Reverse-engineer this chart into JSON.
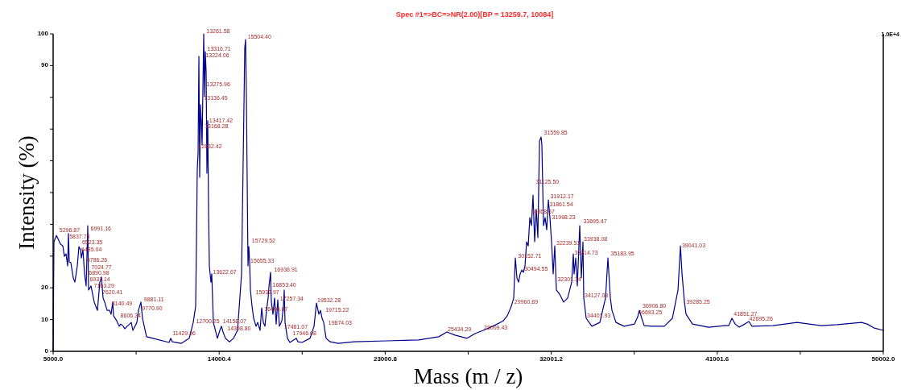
{
  "chart_data": {
    "type": "line",
    "title": "Spec #1=>BC=>NR(2.00)[BP = 13259.7, 10084]",
    "xlabel": "Mass (m / z)",
    "ylabel": "Intensity (%)",
    "xlim": [
      5000,
      50002
    ],
    "xticks": [
      {
        "value": 5000,
        "label": "5000.0"
      },
      {
        "value": 9500.2,
        "label": null
      },
      {
        "value": 14000.4,
        "label": "14000.4"
      },
      {
        "value": 18500.6,
        "label": null
      },
      {
        "value": 23000.8,
        "label": "23000.8"
      },
      {
        "value": 27501,
        "label": null
      },
      {
        "value": 32001.2,
        "label": "32001.2"
      },
      {
        "value": 36501.4,
        "label": null
      },
      {
        "value": 41001.6,
        "label": "41001.6"
      },
      {
        "value": 45501.8,
        "label": null
      },
      {
        "value": 50002,
        "label": "50002.0"
      }
    ],
    "ylim": [
      0,
      100
    ],
    "yticks": [
      0,
      10,
      20,
      {
        "value": 30,
        "label": null
      },
      {
        "value": 40,
        "label": null
      },
      {
        "value": 50,
        "label": null
      },
      {
        "value": 60,
        "label": null
      },
      {
        "value": 70,
        "label": null
      },
      {
        "value": 80,
        "label": null
      },
      90,
      100
    ],
    "grid": false,
    "marker": "none",
    "line_style": "solid",
    "series": [
      {
        "color": "#00008b",
        "x": [
          5000,
          5044,
          5175,
          5262,
          5393,
          5524,
          5611,
          5698,
          5786,
          5829,
          5873,
          5960,
          6091,
          6179,
          6310,
          6397,
          6484,
          6528,
          6615,
          6702,
          6790,
          6877,
          6921,
          7052,
          7226,
          7401,
          7532,
          7619,
          7706,
          7794,
          7925,
          8056,
          8143,
          8230,
          8274,
          8448,
          8579,
          8667,
          8798,
          8885,
          9016,
          9234,
          9321,
          9540,
          9627,
          9758,
          9845,
          10063,
          10413,
          11286,
          11373,
          11460,
          11940,
          12377,
          12595,
          12726,
          12770,
          12813,
          12857,
          12901,
          12944,
          12988,
          13032,
          13075,
          13119,
          13163,
          13206,
          13250,
          13294,
          13337,
          13381,
          13425,
          13468,
          13555,
          13599,
          13686,
          13905,
          14036,
          14123,
          14210,
          14341,
          14559,
          14778,
          14996,
          15214,
          15301,
          15389,
          15432,
          15476,
          15563,
          15607,
          15651,
          15694,
          15782,
          15869,
          16000,
          16087,
          16218,
          16305,
          16393,
          16480,
          16567,
          16654,
          16698,
          16786,
          16829,
          16916,
          17004,
          17091,
          17178,
          17266,
          17397,
          17484,
          17528,
          17571,
          17702,
          17833,
          18051,
          18182,
          18270,
          18488,
          18924,
          19143,
          19274,
          19405,
          19492,
          19579,
          19666,
          19797,
          20016,
          20452,
          21325,
          23071,
          24817,
          25908,
          26345,
          26781,
          27436,
          27873,
          28309,
          28833,
          29400,
          29619,
          29837,
          29968,
          30055,
          30142,
          30230,
          30317,
          30404,
          30492,
          30579,
          30666,
          30754,
          30841,
          30928,
          31015,
          31103,
          31190,
          31277,
          31365,
          31452,
          31495,
          31583,
          31670,
          31757,
          31845,
          31932,
          32019,
          32107,
          32194,
          32281,
          32456,
          32674,
          32892,
          33111,
          33198,
          33242,
          33329,
          33416,
          33547,
          33634,
          33722,
          33765,
          33896,
          34202,
          34638,
          34944,
          35075,
          35206,
          35294,
          35512,
          35949,
          36516,
          36691,
          36778,
          36909,
          37040,
          37477,
          38131,
          38568,
          38874,
          39005,
          39092,
          39222,
          39310,
          39658,
          40531,
          41404,
          41623,
          41797,
          41972,
          42190,
          42496,
          42714,
          42888,
          44023,
          45333,
          46642,
          47515,
          48825,
          49130,
          49480,
          50002
        ],
        "values": [
          0,
          34.5,
          36.5,
          35.5,
          33.8,
          33.2,
          29.9,
          30.7,
          26.9,
          37.1,
          28.2,
          27.9,
          23.1,
          21.8,
          26.9,
          33.0,
          32.0,
          29.4,
          32.0,
          24.4,
          20.6,
          39.6,
          19.3,
          20.6,
          15.5,
          12.9,
          21.8,
          23.4,
          16.8,
          15.5,
          12.9,
          12.9,
          11.7,
          15.5,
          11.2,
          9.6,
          7.9,
          8.6,
          7.9,
          7.1,
          7.9,
          9.1,
          6.6,
          9.1,
          12.9,
          15.5,
          10.4,
          4.6,
          4.1,
          2.8,
          4.1,
          3.0,
          2.5,
          4.1,
          9.1,
          14.2,
          34.5,
          57.4,
          62.4,
          92.9,
          54.8,
          77.7,
          72.6,
          65.0,
          82.7,
          100,
          80.2,
          94.4,
          87.8,
          56.1,
          72.6,
          44.7,
          26.9,
          21.8,
          24.4,
          9.1,
          4.1,
          6.6,
          7.9,
          6.1,
          4.1,
          3.0,
          4.1,
          6.6,
          24.4,
          59.9,
          95.7,
          98.2,
          80.2,
          26.9,
          33.0,
          28.2,
          19.3,
          14.2,
          10.4,
          7.9,
          9.1,
          6.6,
          13.7,
          9.1,
          7.9,
          12.9,
          16.8,
          20.3,
          24.9,
          15.5,
          11.7,
          16.8,
          8.6,
          16.2,
          7.9,
          9.6,
          14.2,
          19.3,
          9.1,
          4.1,
          2.8,
          3.6,
          4.1,
          3.0,
          2.8,
          4.1,
          7.9,
          15.2,
          11.7,
          12.9,
          10.4,
          9.1,
          4.1,
          3.0,
          2.5,
          3.0,
          3.3,
          3.6,
          4.6,
          6.1,
          5.1,
          4.1,
          5.6,
          6.6,
          7.9,
          9.6,
          11.2,
          14.2,
          16.8,
          29.4,
          23.1,
          21.8,
          24.4,
          25.6,
          24.9,
          26.9,
          34.5,
          33.2,
          42.1,
          39.6,
          49.2,
          34.5,
          44.7,
          35.8,
          66.2,
          67.5,
          65.0,
          39.6,
          42.1,
          38.3,
          47.7,
          42.1,
          34.5,
          24.4,
          33.2,
          19.3,
          18.0,
          15.5,
          16.8,
          21.8,
          30.7,
          24.4,
          29.4,
          20.6,
          39.6,
          23.1,
          34.5,
          16.8,
          10.4,
          7.9,
          9.1,
          16.8,
          29.4,
          16.8,
          12.9,
          9.1,
          7.9,
          8.6,
          10.9,
          12.9,
          10.4,
          8.1,
          7.9,
          7.9,
          10.4,
          19.3,
          33.2,
          24.4,
          15.5,
          11.7,
          8.6,
          7.6,
          8.1,
          8.1,
          10.4,
          8.6,
          7.6,
          8.6,
          9.4,
          7.9,
          8.1,
          9.1,
          8.1,
          8.4,
          9.1,
          8.6,
          7.4,
          6.6
        ]
      }
    ],
    "annotations": [
      "1.0E+4",
      {
        "text": "5296.87",
        "x": 5296.87,
        "y": 37.3
      },
      {
        "text": "5837.73",
        "x": 5837.73,
        "y": 35.3
      },
      {
        "text": "6523.35",
        "x": 6523.35,
        "y": 33.5
      },
      {
        "text": "6485.04",
        "x": 6485.04,
        "y": 31.2
      },
      {
        "text": "6786.26",
        "x": 6786.26,
        "y": 27.9
      },
      {
        "text": "6991.16",
        "x": 6991.16,
        "y": 37.8
      },
      {
        "text": "7024.77",
        "x": 7024.77,
        "y": 25.6
      },
      {
        "text": "6890.98",
        "x": 6890.98,
        "y": 23.9
      },
      {
        "text": "6937.14",
        "x": 6937.14,
        "y": 21.8
      },
      {
        "text": "7163.29",
        "x": 7163.29,
        "y": 19.8
      },
      {
        "text": "7620.41",
        "x": 7620.41,
        "y": 17.8
      },
      {
        "text": "8140.49",
        "x": 8140.49,
        "y": 14.2
      },
      {
        "text": "8606.34",
        "x": 8606.34,
        "y": 10.4
      },
      {
        "text": "9881.11",
        "x": 9881.11,
        "y": 15.5
      },
      {
        "text": "9770.90",
        "x": 9770.9,
        "y": 12.7
      },
      {
        "text": "11429.96",
        "x": 11429.96,
        "y": 4.8
      },
      {
        "text": "12700.25",
        "x": 12700.25,
        "y": 8.6
      },
      {
        "text": "12832.42",
        "x": 12832.42,
        "y": 63.7
      },
      {
        "text": "13261.58",
        "x": 13261.58,
        "y": 100
      },
      {
        "text": "13316.71",
        "x": 13316.71,
        "y": 94.4
      },
      {
        "text": "13224.06",
        "x": 13224.06,
        "y": 92.4
      },
      {
        "text": "13275.96",
        "x": 13275.96,
        "y": 83.2
      },
      {
        "text": "13136.45",
        "x": 13136.45,
        "y": 78.9
      },
      {
        "text": "13417.42",
        "x": 13417.42,
        "y": 71.8
      },
      {
        "text": "13168.28",
        "x": 13168.28,
        "y": 70.1
      },
      {
        "text": "13622.67",
        "x": 13622.67,
        "y": 24.1
      },
      {
        "text": "14158.07",
        "x": 14158.07,
        "y": 8.6
      },
      {
        "text": "14398.80",
        "x": 14398.8,
        "y": 6.3
      },
      {
        "text": "15504.40",
        "x": 15504.4,
        "y": 98.2
      },
      {
        "text": "15729.52",
        "x": 15729.52,
        "y": 34
      },
      {
        "text": "15655.33",
        "x": 15655.33,
        "y": 27.7
      },
      {
        "text": "15933.97",
        "x": 15933.97,
        "y": 17.8
      },
      {
        "text": "16936.91",
        "x": 16936.91,
        "y": 24.9
      },
      {
        "text": "16853.40",
        "x": 16853.4,
        "y": 20.1
      },
      {
        "text": "16405.87",
        "x": 16405.87,
        "y": 12.4
      },
      {
        "text": "17257.34",
        "x": 17257.34,
        "y": 15.7
      },
      {
        "text": "17481.07",
        "x": 17481.07,
        "y": 6.9
      },
      {
        "text": "17946.08",
        "x": 17946.08,
        "y": 4.8
      },
      {
        "text": "19532.28",
        "x": 19274,
        "y": 15.2
      },
      {
        "text": "19715.22",
        "x": 19715.22,
        "y": 12.2
      },
      {
        "text": "19874.03",
        "x": 19874.03,
        "y": 8.1
      },
      {
        "text": "25434.29",
        "x": 26345,
        "y": 6.1
      },
      {
        "text": "28009.43",
        "x": 28309,
        "y": 6.6
      },
      {
        "text": "29960.89",
        "x": 29960.89,
        "y": 14.7
      },
      {
        "text": "30152.71",
        "x": 30152.71,
        "y": 29.2
      },
      {
        "text": "30494.55",
        "x": 30494.55,
        "y": 25.1
      },
      {
        "text": "30868.57",
        "x": 30868.57,
        "y": 43.1
      },
      {
        "text": "31125.50",
        "x": 31125.5,
        "y": 52.5
      },
      {
        "text": "31559.85",
        "x": 31559.85,
        "y": 68
      },
      {
        "text": "31912.17",
        "x": 31912.17,
        "y": 48
      },
      {
        "text": "31861.54",
        "x": 31861.54,
        "y": 45.4
      },
      {
        "text": "31998.23",
        "x": 31998.23,
        "y": 41.4
      },
      {
        "text": "32239.51",
        "x": 32239.51,
        "y": 33.2
      },
      {
        "text": "32301.34",
        "x": 32301.34,
        "y": 21.8
      },
      {
        "text": "33214.73",
        "x": 33214.73,
        "y": 30.2
      },
      {
        "text": "33695.47",
        "x": 33695.47,
        "y": 40.1
      },
      {
        "text": "33938.08",
        "x": 33722,
        "y": 34.5
      },
      {
        "text": "34127.03",
        "x": 33765,
        "y": 16.8
      },
      {
        "text": "34401.93",
        "x": 33896,
        "y": 10.4
      },
      {
        "text": "35183.95",
        "x": 35183.95,
        "y": 29.9
      },
      {
        "text": "36906.80",
        "x": 36906.8,
        "y": 13.5
      },
      {
        "text": "36693.25",
        "x": 36693.25,
        "y": 11.4
      },
      {
        "text": "39041.03",
        "x": 39041.03,
        "y": 32.5
      },
      {
        "text": "39285.25",
        "x": 39285.25,
        "y": 14.7
      },
      {
        "text": "41851.27",
        "x": 41851.27,
        "y": 10.9
      },
      {
        "text": "42695.26",
        "x": 42695.26,
        "y": 9.4
      }
    ]
  }
}
